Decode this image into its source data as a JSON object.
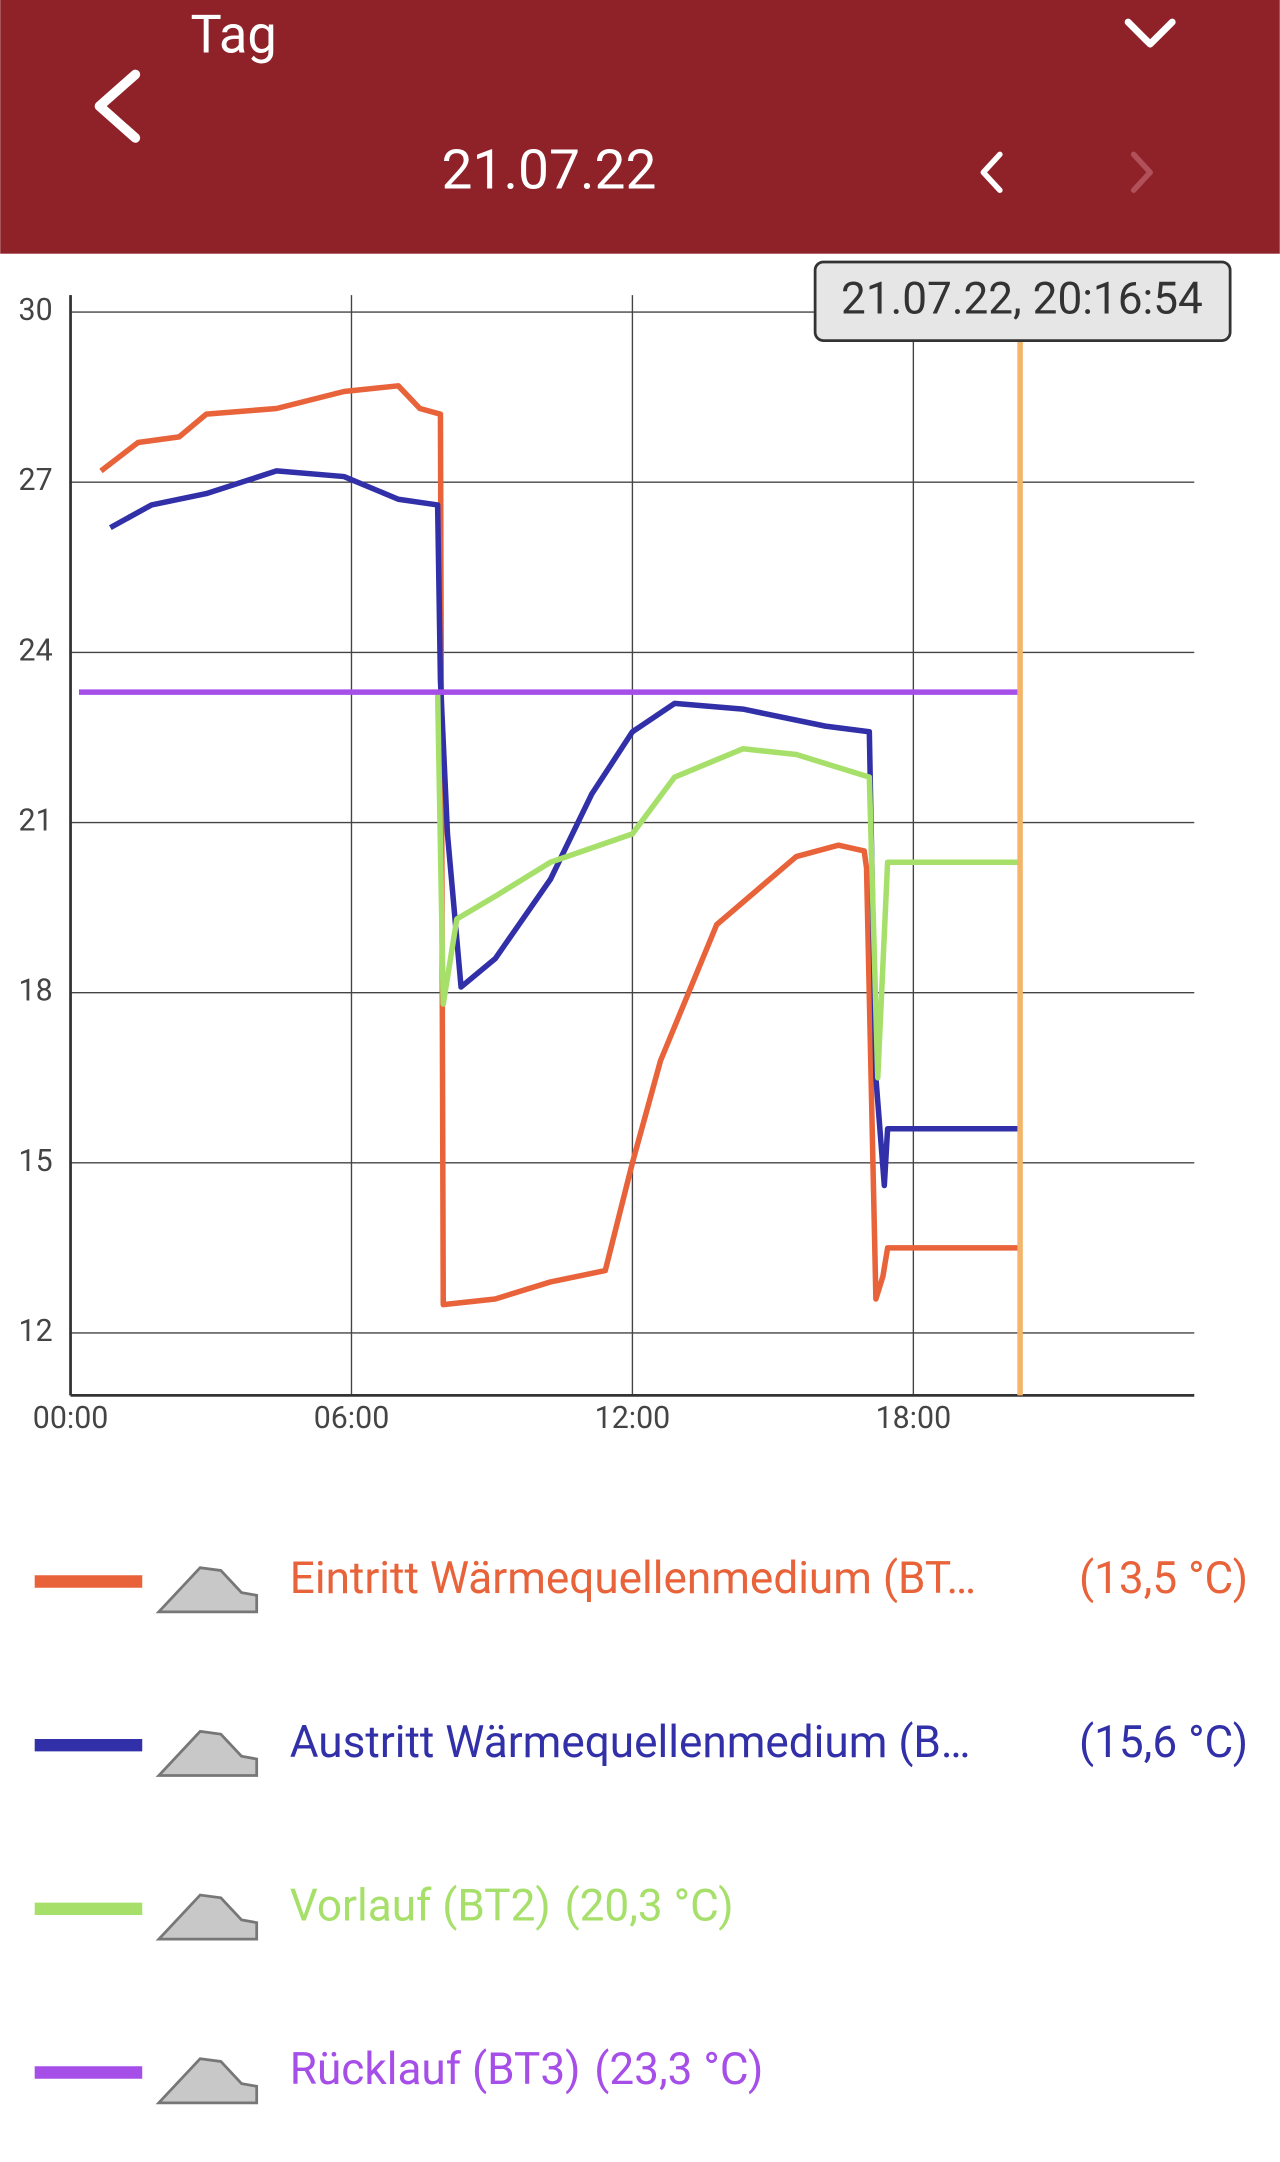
{
  "header": {
    "title": "Tag",
    "date": "21.07.22"
  },
  "chart_data": {
    "type": "line",
    "xlim": [
      0,
      24
    ],
    "ylim": [
      10.9,
      30.3
    ],
    "xticks": [
      {
        "value": 0,
        "label": "00:00"
      },
      {
        "value": 6,
        "label": "06:00"
      },
      {
        "value": 12,
        "label": "12:00"
      },
      {
        "value": 18,
        "label": "18:00"
      }
    ],
    "yticks": [
      12,
      15,
      18,
      21,
      24,
      27,
      30
    ],
    "grid": true,
    "cursor": {
      "x": 20.28,
      "label": "21.07.22, 20:16:54",
      "color": "#f2b56b"
    },
    "series": [
      {
        "name": "Eintritt Wärmequellenmedium (BT…",
        "current_label": "(13,5 °C)",
        "color": "#e8633a",
        "x": [
          0.65,
          1.44,
          2.32,
          2.9,
          4.4,
          5.84,
          7.0,
          7.46,
          7.9,
          7.96,
          9.07,
          10.25,
          11.42,
          12.0,
          12.6,
          13.2,
          13.8,
          14.65,
          15.5,
          16.4,
          16.95,
          17.0,
          17.2,
          17.35,
          17.45,
          20.24
        ],
        "values": [
          27.2,
          27.7,
          27.8,
          28.2,
          28.3,
          28.6,
          28.7,
          28.3,
          28.2,
          12.5,
          12.6,
          12.9,
          13.1,
          15.0,
          16.8,
          18.0,
          19.2,
          19.8,
          20.4,
          20.6,
          20.5,
          20.2,
          12.6,
          13.0,
          13.5,
          13.5
        ]
      },
      {
        "name": "Austritt Wärmequellenmedium (B…",
        "current_label": "(15,6 °C)",
        "color": "#3230a8",
        "x": [
          0.85,
          1.73,
          2.9,
          4.4,
          5.84,
          7.0,
          7.84,
          7.9,
          8.05,
          8.34,
          9.07,
          10.25,
          11.13,
          12.0,
          12.9,
          14.36,
          16.12,
          17.06,
          17.2,
          17.38,
          17.45,
          20.24
        ],
        "values": [
          26.2,
          26.6,
          26.8,
          27.2,
          27.1,
          26.7,
          26.6,
          23.5,
          20.8,
          18.1,
          18.6,
          20.0,
          21.5,
          22.6,
          23.1,
          23.0,
          22.7,
          22.6,
          16.5,
          14.6,
          15.6,
          15.6
        ]
      },
      {
        "name": "Vorlauf (BT2)",
        "current_label": "(20,3 °C)",
        "color": "#a6e06a",
        "x": [
          7.84,
          7.96,
          8.25,
          9.07,
          10.25,
          12.0,
          12.9,
          14.36,
          15.5,
          17.06,
          17.24,
          17.45,
          20.24
        ],
        "values": [
          23.3,
          17.8,
          19.3,
          19.7,
          20.3,
          20.8,
          21.8,
          22.3,
          22.2,
          21.8,
          16.5,
          20.3,
          20.3
        ]
      },
      {
        "name": "Rücklauf (BT3)",
        "current_label": "(23,3 °C)",
        "color": "#a64ee8",
        "x": [
          0.18,
          20.24
        ],
        "values": [
          23.3,
          23.3
        ]
      }
    ]
  }
}
